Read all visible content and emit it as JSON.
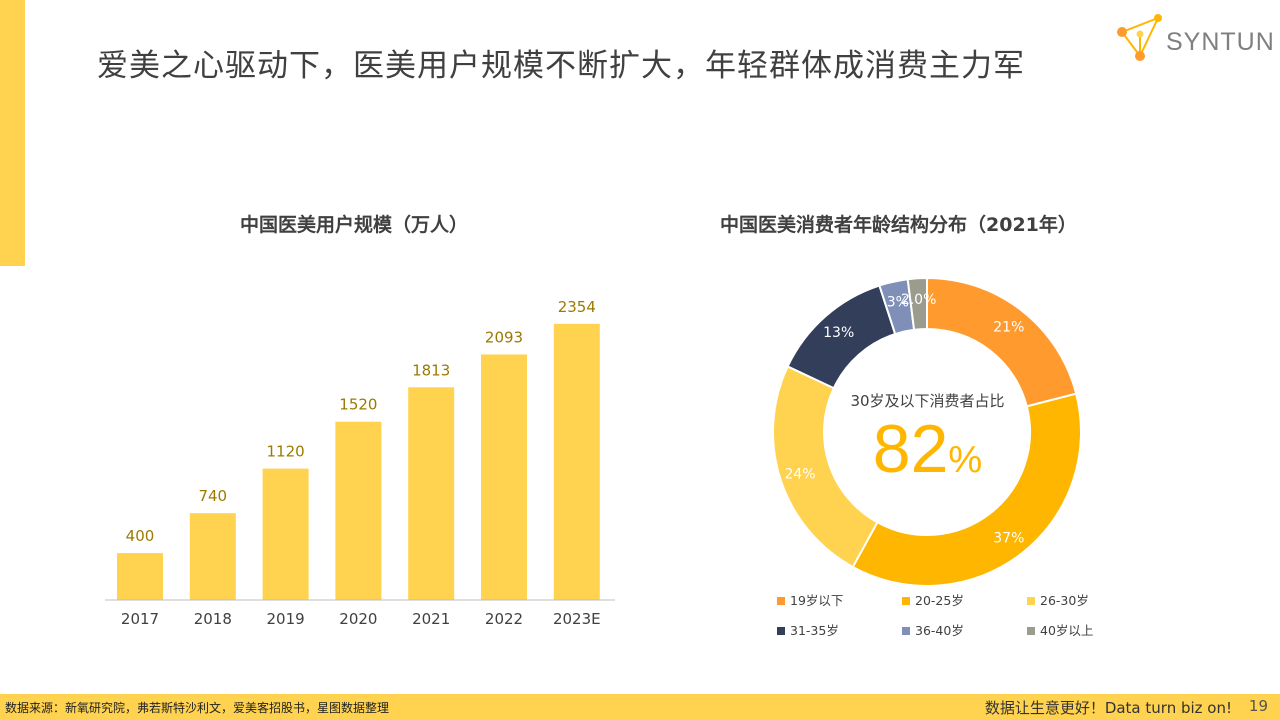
{
  "page": {
    "title": "爱美之心驱动下，医美用户规模不断扩大，年轻群体成消费主力军",
    "logo_text": "SYNTUN",
    "footer_source": "数据来源：新氧研究院，弗若斯特沙利文，爱美客招股书，星图数据整理",
    "footer_slogan": "数据让生意更好！Data turn biz on!",
    "page_number": "19"
  },
  "colors": {
    "accent": "#FFD24F",
    "bar": "#FFD24F",
    "bar_label": "#9C7A00",
    "center_value": "#FFB600"
  },
  "chart_data": [
    {
      "type": "bar",
      "title": "中国医美用户规模（万人）",
      "categories": [
        "2017",
        "2018",
        "2019",
        "2020",
        "2021",
        "2022",
        "2023E"
      ],
      "values": [
        400,
        740,
        1120,
        1520,
        1813,
        2093,
        2354
      ],
      "ylim": [
        0,
        2600
      ],
      "grid": false,
      "data_labels": true
    },
    {
      "type": "pie",
      "title": "中国医美消费者年龄结构分布（2021年）",
      "center_label": "30岁及以下消费者占比",
      "center_value": "82",
      "center_unit": "%",
      "legend_position": "bottom",
      "slices": [
        {
          "name": "19岁以下",
          "value": 21,
          "label": "21%",
          "color": "#FF9A2E"
        },
        {
          "name": "20-25岁",
          "value": 37,
          "label": "37%",
          "color": "#FFB600"
        },
        {
          "name": "26-30岁",
          "value": 24,
          "label": "24%",
          "color": "#FFD24F"
        },
        {
          "name": "31-35岁",
          "value": 13,
          "label": "13%",
          "color": "#323E5A"
        },
        {
          "name": "36-40岁",
          "value": 3,
          "label": "3%",
          "color": "#7F8FB8"
        },
        {
          "name": "40岁以上",
          "value": 2,
          "label": "2.0%",
          "color": "#9C9C8E"
        }
      ]
    }
  ]
}
